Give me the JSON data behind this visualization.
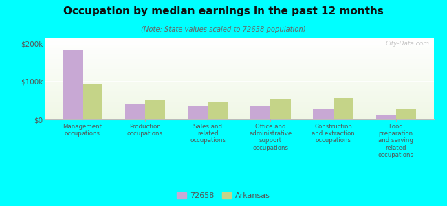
{
  "title": "Occupation by median earnings in the past 12 months",
  "subtitle": "(Note: State values scaled to 72658 population)",
  "categories": [
    "Management\noccupations",
    "Production\noccupations",
    "Sales and\nrelated\noccupations",
    "Office and\nadministrative\nsupport\noccupations",
    "Construction\nand extraction\noccupations",
    "Food\npreparation\nand serving\nrelated\noccupations"
  ],
  "values_72658": [
    183000,
    40000,
    36000,
    34000,
    27000,
    12000
  ],
  "values_arkansas": [
    92000,
    50000,
    47000,
    55000,
    58000,
    28000
  ],
  "color_72658": "#c8a8d4",
  "color_arkansas": "#c5d488",
  "yticks": [
    0,
    100000,
    200000
  ],
  "ytick_labels": [
    "$0",
    "$100k",
    "$200k"
  ],
  "ylim": [
    0,
    215000
  ],
  "figure_bg": "#00ffff",
  "plot_bg": "#eef8e8",
  "bar_width": 0.32,
  "legend_label_72658": "72658",
  "legend_label_arkansas": "Arkansas",
  "watermark": "City-Data.com"
}
